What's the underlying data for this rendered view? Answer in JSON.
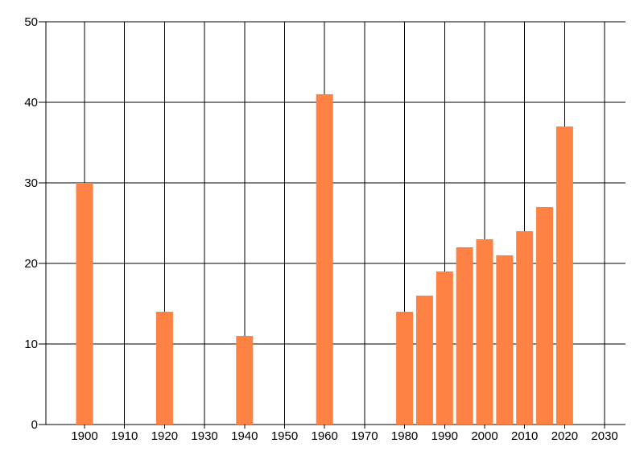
{
  "chart_data": {
    "type": "bar",
    "title": "",
    "xlabel": "",
    "ylabel": "",
    "categories": [
      1900,
      1920,
      1940,
      1960,
      1980,
      1985,
      1990,
      1995,
      2000,
      2005,
      2010,
      2015,
      2020
    ],
    "values": [
      30,
      14,
      11,
      41,
      14,
      16,
      19,
      22,
      23,
      21,
      24,
      27,
      37
    ],
    "x_ticks": [
      1900,
      1910,
      1920,
      1930,
      1940,
      1950,
      1960,
      1970,
      1980,
      1990,
      2000,
      2010,
      2020,
      2030
    ],
    "x_tick_labels": [
      "1900",
      "1910",
      "1920",
      "1930",
      "1940",
      "1950",
      "1960",
      "1970",
      "1980",
      "1990",
      "2000",
      "2010",
      "2020",
      "2030"
    ],
    "y_ticks": [
      0,
      10,
      20,
      30,
      40,
      50
    ],
    "y_tick_labels": [
      "0",
      "10",
      "20",
      "30",
      "40",
      "50"
    ],
    "xlim": [
      1890,
      2034
    ],
    "ylim": [
      0,
      50
    ],
    "grid": true,
    "legend_position": "none",
    "bar_color": "#fd8243",
    "grid_color": "#000000",
    "axis_color": "#000000",
    "text_color": "#000000",
    "background_color": "#ffffff"
  }
}
